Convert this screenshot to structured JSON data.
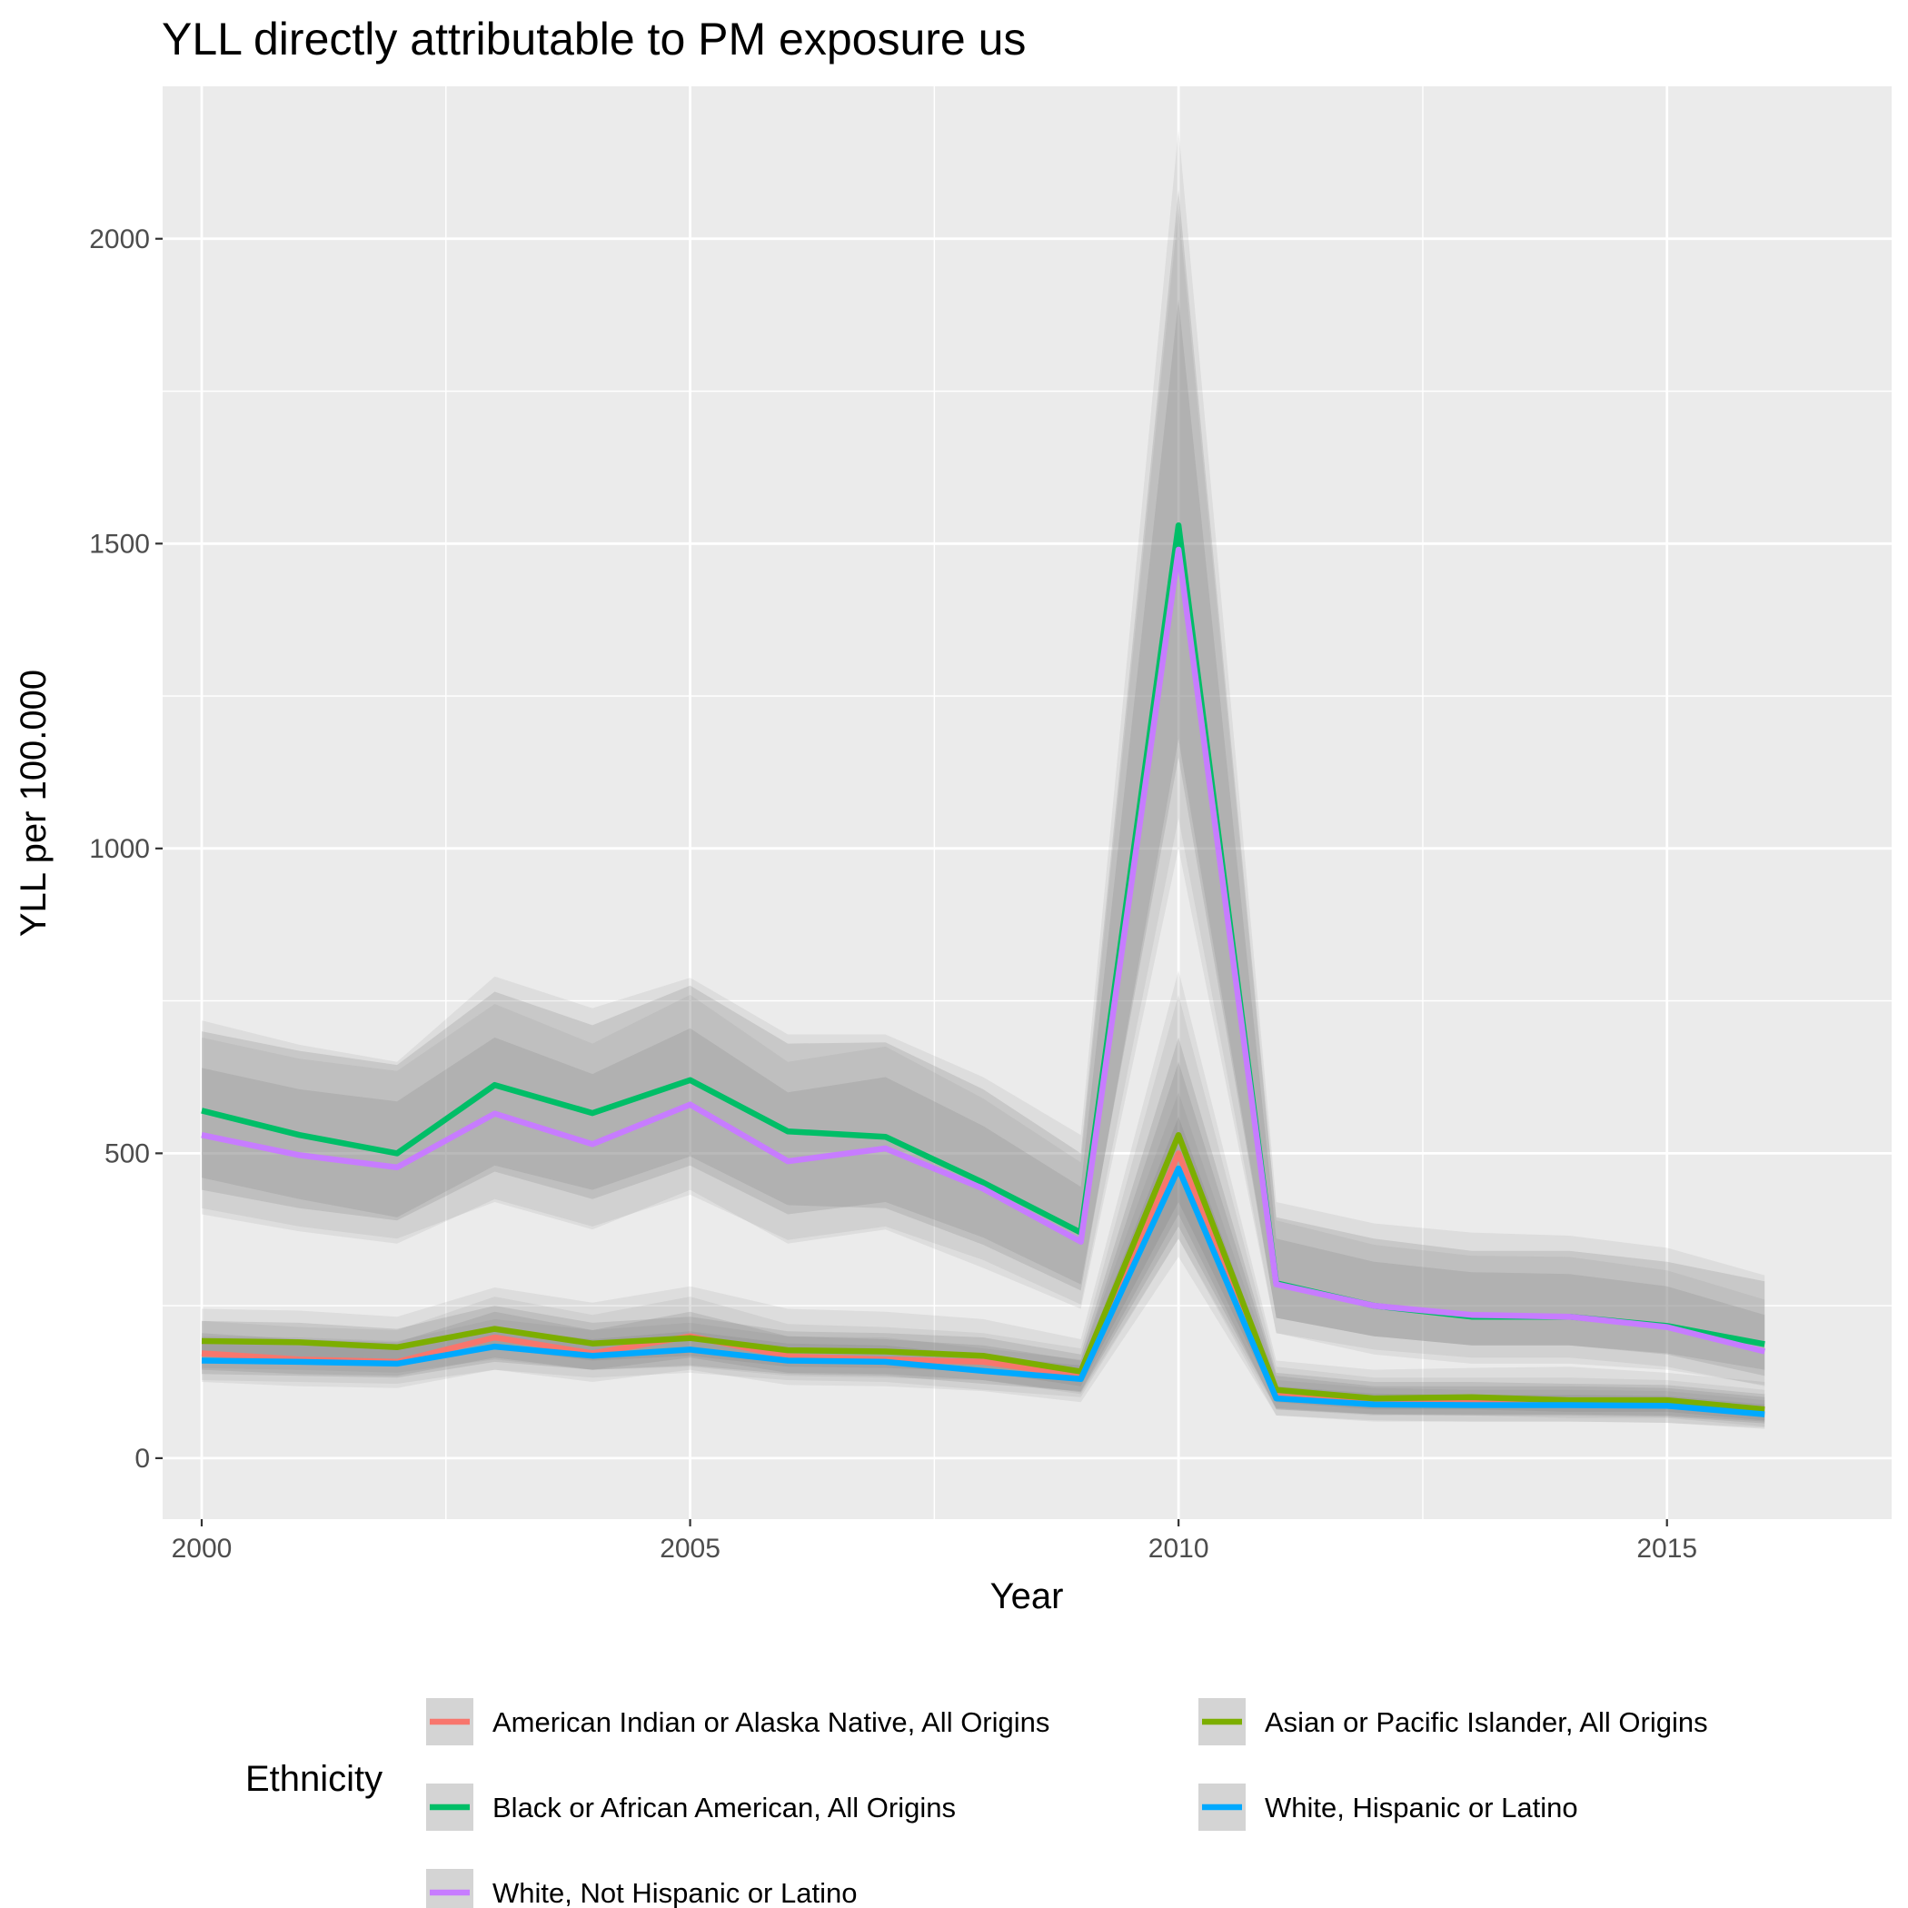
{
  "chart_data": {
    "type": "line",
    "title": "YLL directly attributable to PM exposure us",
    "xlabel": "Year",
    "ylabel": "YLL per 100.000",
    "xlim": [
      1999.6,
      2017.3
    ],
    "ylim": [
      -100,
      2250
    ],
    "x_ticks": [
      2000,
      2005,
      2010,
      2015
    ],
    "x_minor_ticks": [
      2002.5,
      2007.5,
      2012.5
    ],
    "y_ticks": [
      0,
      500,
      1000,
      1500,
      2000
    ],
    "y_minor_ticks": [
      250,
      750,
      1250,
      1750
    ],
    "grid": true,
    "legend": {
      "title": "Ethnicity",
      "position": "bottom"
    },
    "x": [
      2000,
      2001,
      2002,
      2003,
      2004,
      2005,
      2006,
      2007,
      2008,
      2009,
      2010,
      2011,
      2012,
      2013,
      2014,
      2015,
      2016
    ],
    "series": [
      {
        "name": "American Indian or Alaska Native, All Origins",
        "color": "#F8766D",
        "values": [
          172,
          162,
          158,
          198,
          172,
          200,
          167,
          162,
          158,
          135,
          500,
          105,
          92,
          92,
          92,
          90,
          80
        ],
        "band_inner_lower": [
          145,
          138,
          135,
          165,
          145,
          165,
          140,
          138,
          128,
          108,
          380,
          82,
          72,
          72,
          72,
          70,
          60
        ],
        "band_inner_upper": [
          205,
          195,
          190,
          240,
          210,
          240,
          200,
          195,
          185,
          160,
          650,
          135,
          118,
          118,
          118,
          115,
          100
        ],
        "band_outer_lower": [
          125,
          118,
          115,
          145,
          125,
          145,
          120,
          118,
          110,
          92,
          330,
          70,
          60,
          60,
          60,
          58,
          50
        ],
        "band_outer_upper": [
          225,
          215,
          210,
          265,
          235,
          265,
          220,
          215,
          205,
          180,
          760,
          150,
          132,
          132,
          132,
          128,
          112
        ]
      },
      {
        "name": "Asian or Pacific Islander, All Origins",
        "color": "#7CAE00",
        "values": [
          192,
          190,
          182,
          212,
          188,
          197,
          177,
          175,
          168,
          142,
          530,
          112,
          98,
          100,
          95,
          95,
          80
        ],
        "band_inner_lower": [
          165,
          162,
          155,
          180,
          160,
          168,
          150,
          148,
          142,
          118,
          420,
          92,
          80,
          80,
          76,
          76,
          62
        ],
        "band_inner_upper": [
          225,
          222,
          212,
          250,
          222,
          232,
          208,
          205,
          198,
          170,
          690,
          140,
          125,
          125,
          122,
          120,
          105
        ],
        "band_outer_lower": [
          148,
          145,
          140,
          162,
          145,
          150,
          135,
          132,
          128,
          105,
          360,
          80,
          70,
          70,
          66,
          66,
          52
        ],
        "band_outer_upper": [
          245,
          242,
          232,
          280,
          255,
          282,
          245,
          240,
          228,
          195,
          800,
          160,
          145,
          148,
          150,
          140,
          125
        ]
      },
      {
        "name": "Black or African American, All Origins",
        "color": "#00BE67",
        "values": [
          570,
          530,
          500,
          612,
          566,
          620,
          536,
          527,
          452,
          370,
          1530,
          287,
          250,
          232,
          232,
          217,
          187
        ],
        "band_inner_lower": [
          460,
          425,
          395,
          480,
          440,
          495,
          415,
          410,
          350,
          275,
          1180,
          230,
          200,
          185,
          185,
          172,
          145
        ],
        "band_inner_upper": [
          700,
          668,
          645,
          765,
          710,
          775,
          680,
          682,
          605,
          500,
          2080,
          395,
          360,
          340,
          340,
          322,
          290
        ],
        "band_outer_lower": [
          410,
          380,
          360,
          420,
          375,
          440,
          352,
          375,
          312,
          245,
          1000,
          205,
          170,
          155,
          155,
          145,
          120
        ],
        "band_outer_upper": [
          718,
          678,
          650,
          790,
          738,
          788,
          695,
          695,
          625,
          530,
          2180,
          420,
          385,
          370,
          365,
          345,
          300
        ]
      },
      {
        "name": "White, Hispanic or Latino",
        "color": "#00A9FF",
        "values": [
          160,
          158,
          155,
          183,
          168,
          178,
          160,
          158,
          143,
          130,
          475,
          98,
          88,
          87,
          87,
          86,
          72
        ],
        "band_inner_lower": [
          138,
          135,
          132,
          158,
          145,
          152,
          138,
          135,
          122,
          110,
          400,
          80,
          72,
          70,
          70,
          68,
          57
        ],
        "band_inner_upper": [
          188,
          185,
          180,
          212,
          195,
          208,
          188,
          185,
          168,
          152,
          560,
          118,
          106,
          104,
          104,
          102,
          88
        ],
        "band_outer_lower": [
          128,
          125,
          122,
          145,
          132,
          140,
          128,
          125,
          112,
          100,
          360,
          70,
          62,
          60,
          60,
          58,
          48
        ],
        "band_outer_upper": [
          200,
          198,
          192,
          228,
          210,
          222,
          200,
          198,
          180,
          162,
          600,
          128,
          115,
          112,
          112,
          110,
          95
        ]
      },
      {
        "name": "White, Not Hispanic or Latino",
        "color": "#C77CFF",
        "values": [
          530,
          497,
          477,
          565,
          515,
          580,
          487,
          508,
          442,
          355,
          1490,
          285,
          250,
          235,
          232,
          215,
          175
        ],
        "band_inner_lower": [
          440,
          410,
          390,
          470,
          425,
          480,
          400,
          420,
          362,
          285,
          1150,
          230,
          200,
          185,
          185,
          170,
          135
        ],
        "band_inner_upper": [
          640,
          605,
          585,
          690,
          630,
          705,
          600,
          625,
          545,
          445,
          1900,
          360,
          322,
          305,
          302,
          282,
          235
        ],
        "band_outer_lower": [
          400,
          372,
          352,
          425,
          380,
          432,
          358,
          380,
          325,
          252,
          1050,
          205,
          178,
          165,
          165,
          150,
          118
        ],
        "band_outer_upper": [
          690,
          655,
          635,
          745,
          680,
          760,
          650,
          675,
          590,
          485,
          2050,
          390,
          350,
          332,
          330,
          308,
          260
        ]
      }
    ],
    "legend_order": [
      0,
      1,
      2,
      3,
      4
    ]
  }
}
